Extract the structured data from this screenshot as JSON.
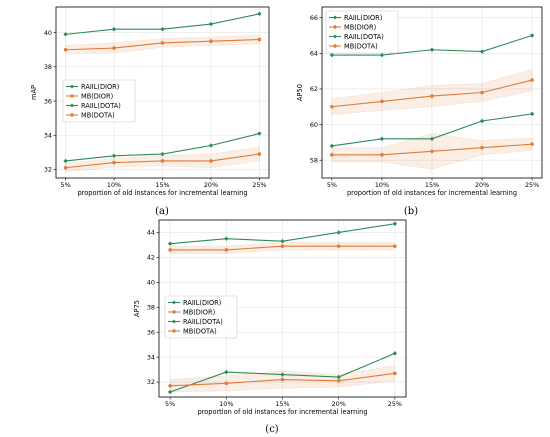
{
  "chart_data": [
    {
      "type": "line",
      "panel_label": "(a)",
      "categories": [
        "5%",
        "10%",
        "15%",
        "20%",
        "25%"
      ],
      "xlabel": "proportion of old instances for incremental learning",
      "ylabel": "mAP",
      "ylim": [
        31.5,
        41.5
      ],
      "yticks": [
        32,
        34,
        36,
        38,
        40
      ],
      "grid": true,
      "legend_position": "center-left",
      "series": [
        {
          "name": "RAIIL(DIOR)",
          "color": "#2e8b57",
          "marker": "diamond",
          "values": [
            39.9,
            40.2,
            40.2,
            40.5,
            41.1
          ]
        },
        {
          "name": "MB(DIOR)",
          "color": "#e07b39",
          "marker": "circle",
          "values": [
            39.0,
            39.1,
            39.4,
            39.5,
            39.6
          ],
          "band": [
            0.25,
            0.3,
            0.25,
            0.25,
            0.25
          ]
        },
        {
          "name": "RAIIL(DOTA)",
          "color": "#2e8b57",
          "marker": "diamond",
          "values": [
            32.5,
            32.8,
            32.9,
            33.4,
            34.1
          ]
        },
        {
          "name": "MB(DOTA)",
          "color": "#e07b39",
          "marker": "circle",
          "values": [
            32.1,
            32.4,
            32.5,
            32.5,
            32.9
          ],
          "band": [
            0.25,
            0.25,
            0.3,
            0.4,
            0.4
          ]
        }
      ]
    },
    {
      "type": "line",
      "panel_label": "(b)",
      "categories": [
        "5%",
        "10%",
        "15%",
        "20%",
        "25%"
      ],
      "xlabel": "proportion of old instances for incremental learning",
      "ylabel": "AP50",
      "ylim": [
        57.0,
        66.6
      ],
      "yticks": [
        58,
        60,
        62,
        64,
        66
      ],
      "grid": true,
      "legend_position": "top-left",
      "series": [
        {
          "name": "RAIIL(DIOR)",
          "color": "#2e8b57",
          "marker": "diamond",
          "values": [
            63.9,
            63.9,
            64.2,
            64.1,
            65.0
          ]
        },
        {
          "name": "MB(DIOR)",
          "color": "#e07b39",
          "marker": "circle",
          "values": [
            61.0,
            61.3,
            61.6,
            61.8,
            62.5
          ],
          "band": [
            0.45,
            0.5,
            0.6,
            0.5,
            0.6
          ]
        },
        {
          "name": "RAIIL(DOTA)",
          "color": "#2e8b57",
          "marker": "diamond",
          "values": [
            58.8,
            59.2,
            59.2,
            60.2,
            60.6
          ]
        },
        {
          "name": "MB(DOTA)",
          "color": "#e07b39",
          "marker": "circle",
          "values": [
            58.3,
            58.3,
            58.5,
            58.7,
            58.9
          ],
          "band": [
            0.4,
            0.4,
            1.0,
            0.4,
            0.35
          ]
        }
      ]
    },
    {
      "type": "line",
      "panel_label": "(c)",
      "categories": [
        "5%",
        "10%",
        "15%",
        "20%",
        "25%"
      ],
      "xlabel": "proportion of old instances for incremental learning",
      "ylabel": "AP75",
      "ylim": [
        30.8,
        45.0
      ],
      "yticks": [
        32,
        34,
        36,
        38,
        40,
        42,
        44
      ],
      "grid": true,
      "legend_position": "center-left",
      "series": [
        {
          "name": "RAIIL(DIOR)",
          "color": "#2e8b57",
          "marker": "diamond",
          "values": [
            43.1,
            43.5,
            43.3,
            44.0,
            44.7
          ]
        },
        {
          "name": "MB(DIOR)",
          "color": "#e07b39",
          "marker": "circle",
          "values": [
            42.6,
            42.6,
            42.9,
            42.9,
            42.9
          ],
          "band": [
            0.3,
            0.3,
            0.3,
            0.3,
            0.3
          ]
        },
        {
          "name": "RAIIL(DOTA)",
          "color": "#2e8b57",
          "marker": "diamond",
          "values": [
            31.2,
            32.8,
            32.6,
            32.4,
            34.3
          ]
        },
        {
          "name": "MB(DOTA)",
          "color": "#e07b39",
          "marker": "circle",
          "values": [
            31.7,
            31.9,
            32.2,
            32.1,
            32.7
          ],
          "band": [
            0.5,
            0.6,
            0.7,
            0.5,
            0.6
          ]
        }
      ]
    }
  ]
}
